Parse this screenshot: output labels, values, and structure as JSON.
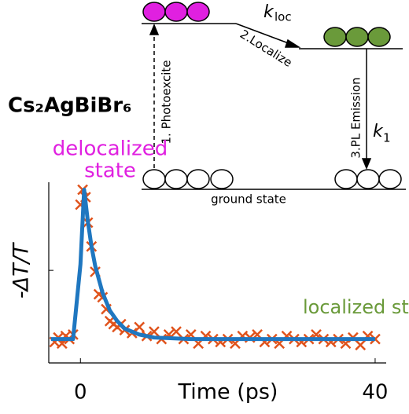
{
  "chart_data": {
    "type": "scatter",
    "xlabel": "Time (ps)",
    "ylabel": "-ΔT/T",
    "xlim": [
      -4.3,
      41.5
    ],
    "xticks": [
      0,
      40
    ],
    "ylim": [
      -0.16,
      1.05
    ],
    "yticks": [
      0.46
    ],
    "annotations": [
      {
        "text": "Cs₂AgBiBr₆",
        "color": "#000000"
      },
      {
        "text": "delocalized",
        "color": "#e020e0"
      },
      {
        "text": "state",
        "color": "#e020e0"
      },
      {
        "text": "localized state",
        "color": "#6a9a3a"
      }
    ],
    "series": [
      {
        "style": "marker",
        "color": "#e0531c",
        "x": [
          -3.5,
          -3,
          -2.5,
          -2,
          -1.5,
          -1,
          0,
          0.3,
          0.7,
          1,
          1.5,
          2,
          2.5,
          3,
          3.5,
          4,
          4.5,
          5,
          5.5,
          6,
          7,
          8,
          9,
          10,
          11,
          12,
          13,
          14,
          15,
          16,
          17,
          18,
          19,
          20,
          21,
          22,
          23,
          24,
          25,
          26,
          27,
          28,
          29,
          30,
          31,
          32,
          33,
          34,
          35,
          36,
          37,
          38,
          39,
          40
        ],
        "values": [
          -0.02,
          0.01,
          -0.03,
          0.02,
          0,
          0.03,
          0.9,
          1,
          0.95,
          0.78,
          0.62,
          0.45,
          0.3,
          0.28,
          0.2,
          0.12,
          0.1,
          0.08,
          0.1,
          0.06,
          0.04,
          0.08,
          0.02,
          0.05,
          0,
          0.03,
          0.05,
          0,
          0.03,
          -0.03,
          0.02,
          0,
          -0.02,
          0,
          -0.03,
          0.02,
          0.01,
          0.03,
          -0.02,
          0,
          -0.03,
          0.02,
          0,
          -0.02,
          0,
          0.03,
          0,
          -0.02,
          0,
          -0.03,
          0.01,
          -0.04,
          0.02,
          0
        ]
      },
      {
        "style": "line",
        "color": "#1f77c0",
        "x": [
          -4,
          -1,
          0,
          0.5,
          1,
          1.5,
          2,
          3,
          4,
          5,
          6,
          8,
          10,
          15,
          20,
          30,
          40
        ],
        "values": [
          0,
          0,
          0.5,
          1,
          0.79,
          0.62,
          0.49,
          0.31,
          0.19,
          0.12,
          0.07,
          0.03,
          0.01,
          0,
          0,
          0,
          0
        ]
      }
    ]
  },
  "inset": {
    "photoexcite": "1. Photoexcite",
    "localize": "2.Localize",
    "k_loc": "k",
    "k_loc_sub": "loc",
    "emission": "3.PL Emission",
    "k_1": "k",
    "k_1_sub": "1",
    "ground": "ground state"
  }
}
